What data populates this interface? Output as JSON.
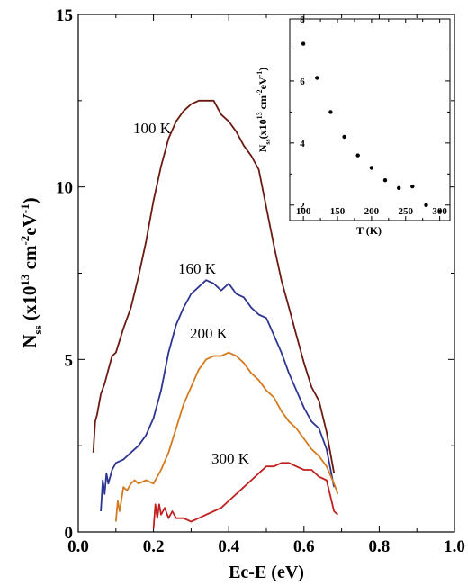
{
  "chart_data": [
    {
      "type": "line",
      "xlabel": "Ec-E (eV)",
      "ylabel": {
        "main": "N",
        "sub": "ss",
        "tail": " (x10",
        "sup1": "13",
        "mid": " cm",
        "sup2": "-2",
        "mid2": "eV",
        "sup3": "-1",
        "end": ")"
      },
      "xlim": [
        0.0,
        1.0
      ],
      "ylim": [
        0,
        15
      ],
      "xticks": [
        "0.0",
        "0.2",
        "0.4",
        "0.6",
        "0.8",
        "1.0"
      ],
      "yticks": [
        "0",
        "5",
        "10",
        "15"
      ],
      "grid": false,
      "series": [
        {
          "name": "100 K",
          "color": "#6b1a10",
          "x": [
            0.04,
            0.045,
            0.05,
            0.06,
            0.07,
            0.08,
            0.09,
            0.1,
            0.12,
            0.14,
            0.16,
            0.18,
            0.2,
            0.22,
            0.24,
            0.26,
            0.28,
            0.3,
            0.32,
            0.34,
            0.36,
            0.38,
            0.4,
            0.42,
            0.44,
            0.46,
            0.48,
            0.5,
            0.52,
            0.54,
            0.56,
            0.58,
            0.6,
            0.62,
            0.64,
            0.66,
            0.68
          ],
          "y": [
            2.3,
            3.2,
            3.4,
            4.0,
            4.3,
            4.7,
            5.1,
            5.2,
            5.9,
            6.5,
            7.4,
            8.4,
            9.6,
            10.6,
            11.4,
            11.9,
            12.2,
            12.4,
            12.5,
            12.5,
            12.5,
            12.1,
            11.9,
            11.6,
            11.2,
            10.9,
            10.5,
            9.4,
            8.3,
            7.3,
            6.5,
            5.7,
            4.9,
            4.2,
            3.8,
            2.9,
            1.7
          ]
        },
        {
          "name": "160 K",
          "color": "#2e3590",
          "x": [
            0.06,
            0.065,
            0.07,
            0.075,
            0.08,
            0.09,
            0.1,
            0.12,
            0.14,
            0.16,
            0.18,
            0.2,
            0.22,
            0.24,
            0.26,
            0.28,
            0.3,
            0.32,
            0.34,
            0.36,
            0.38,
            0.4,
            0.42,
            0.44,
            0.46,
            0.48,
            0.5,
            0.52,
            0.54,
            0.56,
            0.58,
            0.6,
            0.62,
            0.64,
            0.66,
            0.68
          ],
          "y": [
            0.6,
            1.5,
            1.1,
            1.7,
            1.4,
            1.8,
            2.0,
            2.1,
            2.3,
            2.5,
            2.8,
            3.3,
            4.1,
            5.2,
            6.0,
            6.5,
            6.9,
            7.1,
            7.3,
            7.2,
            7.0,
            7.2,
            6.9,
            6.8,
            6.5,
            6.3,
            6.2,
            5.7,
            5.2,
            4.6,
            4.1,
            3.6,
            3.2,
            3.0,
            2.4,
            1.3
          ]
        },
        {
          "name": "200 K",
          "color": "#d47a1e",
          "x": [
            0.1,
            0.105,
            0.11,
            0.12,
            0.13,
            0.14,
            0.15,
            0.16,
            0.18,
            0.2,
            0.22,
            0.24,
            0.26,
            0.28,
            0.3,
            0.32,
            0.34,
            0.36,
            0.38,
            0.4,
            0.42,
            0.44,
            0.46,
            0.48,
            0.5,
            0.52,
            0.54,
            0.56,
            0.58,
            0.6,
            0.62,
            0.64,
            0.66,
            0.68,
            0.69
          ],
          "y": [
            0.3,
            0.9,
            0.6,
            1.3,
            1.2,
            1.4,
            1.5,
            1.4,
            1.5,
            1.4,
            1.8,
            2.3,
            3.0,
            3.7,
            4.2,
            4.7,
            5.0,
            5.1,
            5.1,
            5.2,
            5.1,
            4.9,
            4.6,
            4.4,
            4.1,
            3.9,
            3.5,
            3.2,
            3.0,
            2.7,
            2.4,
            2.2,
            1.9,
            1.4,
            1.1
          ]
        },
        {
          "name": "300 K",
          "color": "#c02020",
          "x": [
            0.2,
            0.205,
            0.21,
            0.215,
            0.22,
            0.23,
            0.24,
            0.25,
            0.26,
            0.28,
            0.3,
            0.32,
            0.34,
            0.36,
            0.38,
            0.4,
            0.42,
            0.44,
            0.46,
            0.48,
            0.5,
            0.52,
            0.54,
            0.56,
            0.58,
            0.6,
            0.62,
            0.64,
            0.66,
            0.68,
            0.69
          ],
          "y": [
            0.1,
            0.8,
            0.4,
            0.8,
            0.5,
            0.7,
            0.4,
            0.6,
            0.4,
            0.4,
            0.3,
            0.4,
            0.5,
            0.6,
            0.7,
            0.9,
            1.1,
            1.3,
            1.5,
            1.7,
            1.9,
            1.9,
            2.0,
            2.0,
            1.9,
            1.8,
            1.8,
            1.6,
            1.5,
            0.6,
            0.5
          ]
        }
      ]
    },
    {
      "type": "scatter",
      "xlabel": "T (K)",
      "ylabel": {
        "main": "N",
        "sub": "ss",
        "tail": "(x10",
        "sup1": "13",
        "mid": " cm",
        "sup2": "-2",
        "mid2": "eV",
        "sup3": "-1",
        "end": ")"
      },
      "xlim": [
        80,
        315
      ],
      "ylim": [
        1.5,
        8
      ],
      "xticks": [
        "100",
        "150",
        "200",
        "250",
        "300"
      ],
      "yticks": [
        "2",
        "4",
        "6",
        "8"
      ],
      "grid": false,
      "x": [
        100,
        120,
        140,
        160,
        180,
        200,
        220,
        240,
        260,
        280,
        300
      ],
      "y": [
        7.2,
        6.1,
        5.0,
        4.2,
        3.6,
        3.2,
        2.8,
        2.55,
        2.6,
        2.0,
        1.8
      ]
    }
  ]
}
